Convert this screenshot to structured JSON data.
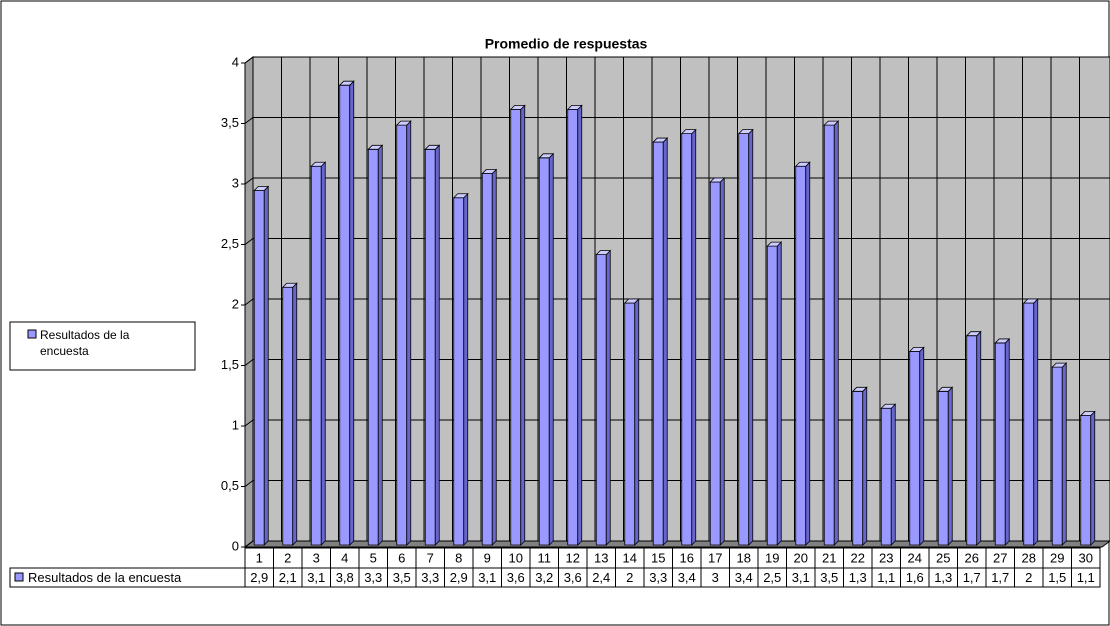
{
  "chart_data": {
    "type": "bar3d",
    "title": "Promedio de respuestas",
    "categories": [
      "1",
      "2",
      "3",
      "4",
      "5",
      "6",
      "7",
      "8",
      "9",
      "10",
      "11",
      "12",
      "13",
      "14",
      "15",
      "16",
      "17",
      "18",
      "19",
      "20",
      "21",
      "22",
      "23",
      "24",
      "25",
      "26",
      "27",
      "28",
      "29",
      "30"
    ],
    "series": [
      {
        "name": "Resultados de la encuesta",
        "color": "#9999ff",
        "values": [
          2.93,
          2.13,
          3.13,
          3.8,
          3.27,
          3.47,
          3.27,
          2.87,
          3.07,
          3.6,
          3.2,
          3.6,
          2.4,
          2.0,
          3.33,
          3.4,
          3.0,
          3.4,
          2.47,
          3.13,
          3.47,
          1.27,
          1.13,
          1.6,
          1.27,
          1.73,
          1.67,
          2.0,
          1.47,
          1.07
        ],
        "value_labels": [
          "2,9",
          "2,1",
          "3,1",
          "3,8",
          "3,3",
          "3,5",
          "3,3",
          "2,9",
          "3,1",
          "3,6",
          "3,2",
          "3,6",
          "2,4",
          "2",
          "3,3",
          "3,4",
          "3",
          "3,4",
          "2,5",
          "3,1",
          "3,5",
          "1,3",
          "1,1",
          "1,6",
          "1,3",
          "1,7",
          "1,7",
          "2",
          "1,5",
          "1,1"
        ]
      }
    ],
    "ylim": [
      0,
      4
    ],
    "yticks": [
      0,
      {
        "value": 0.5,
        "label": "0,5"
      },
      1,
      {
        "value": 1.5,
        "label": "1,5"
      },
      2,
      {
        "value": 2.5,
        "label": "2,5"
      },
      3,
      {
        "value": 3.5,
        "label": "3,5"
      },
      4
    ],
    "grid": true,
    "legend": "left",
    "data_table": true
  }
}
